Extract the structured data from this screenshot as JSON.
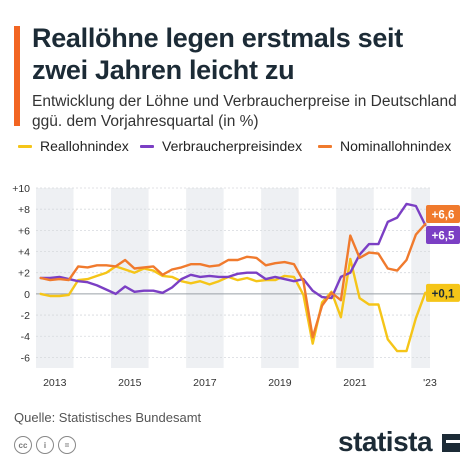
{
  "header": {
    "title": "Reallöhne legen erstmals seit zwei Jahren leicht zu",
    "subtitle": "Entwicklung der Löhne und Verbraucherpreise in Deutschland ggü. dem Vorjahresquartal (in %)"
  },
  "footer": {
    "source": "Quelle: Statistisches Bundesamt",
    "brand": "statista",
    "license_icons": [
      "cc-icon",
      "by-icon",
      "nd-icon"
    ]
  },
  "colors": {
    "accent": "#f26522",
    "real": "#f5c518",
    "cpi": "#7b3fc4",
    "nominal": "#f07a2d"
  },
  "chart_data": {
    "type": "line",
    "title": "Reallöhne legen erstmals seit zwei Jahren leicht zu",
    "subtitle": "Entwicklung der Löhne und Verbraucherpreise in Deutschland ggü. dem Vorjahresquartal (in %)",
    "xlabel": "",
    "ylabel": "",
    "x": [
      "Q1 2013",
      "Q2 2013",
      "Q3 2013",
      "Q4 2013",
      "Q1 2014",
      "Q2 2014",
      "Q3 2014",
      "Q4 2014",
      "Q1 2015",
      "Q2 2015",
      "Q3 2015",
      "Q4 2015",
      "Q1 2016",
      "Q2 2016",
      "Q3 2016",
      "Q4 2016",
      "Q1 2017",
      "Q2 2017",
      "Q3 2017",
      "Q4 2017",
      "Q1 2018",
      "Q2 2018",
      "Q3 2018",
      "Q4 2018",
      "Q1 2019",
      "Q2 2019",
      "Q3 2019",
      "Q4 2019",
      "Q1 2020",
      "Q2 2020",
      "Q3 2020",
      "Q4 2020",
      "Q1 2021",
      "Q2 2021",
      "Q3 2021",
      "Q4 2021",
      "Q1 2022",
      "Q2 2022",
      "Q3 2022",
      "Q4 2022",
      "Q1 2023",
      "Q2 2023"
    ],
    "x_tick_labels": [
      "2013",
      "2015",
      "2017",
      "2019",
      "2021",
      "'23"
    ],
    "ylim": [
      -7,
      10
    ],
    "y_ticks": [
      -6,
      -4,
      -2,
      0,
      2,
      4,
      6,
      8,
      10
    ],
    "y_tick_labels": [
      "-6",
      "-4",
      "-2",
      "0",
      "+2",
      "+4",
      "+6",
      "+8",
      "+10"
    ],
    "grid": true,
    "legend_position": "top",
    "series": [
      {
        "name": "Reallohnindex",
        "color": "#f5c518",
        "values": [
          0.0,
          -0.2,
          -0.2,
          -0.1,
          1.3,
          1.4,
          1.7,
          2.0,
          2.6,
          2.3,
          2.0,
          2.4,
          2.2,
          1.7,
          1.6,
          1.2,
          1.0,
          1.2,
          0.9,
          1.2,
          1.6,
          1.3,
          1.5,
          1.2,
          1.3,
          1.3,
          1.7,
          1.6,
          -0.1,
          -4.7,
          -0.8,
          0.2,
          -2.2,
          3.3,
          -0.4,
          -1.0,
          -1.0,
          -4.3,
          -5.4,
          -5.4,
          -2.3,
          0.1
        ],
        "end_label": "+0,1"
      },
      {
        "name": "Verbraucherpreisindex",
        "color": "#7b3fc4",
        "values": [
          1.5,
          1.5,
          1.6,
          1.4,
          1.2,
          1.1,
          0.8,
          0.4,
          0.0,
          0.7,
          0.2,
          0.3,
          0.3,
          0.1,
          0.6,
          1.4,
          1.8,
          1.6,
          1.7,
          1.6,
          1.6,
          1.9,
          2.0,
          2.0,
          1.4,
          1.6,
          1.4,
          1.2,
          1.4,
          0.3,
          -0.3,
          -0.4,
          1.6,
          2.0,
          3.7,
          4.7,
          4.7,
          6.8,
          7.2,
          8.5,
          8.3,
          6.5
        ],
        "end_label": "+6,5"
      },
      {
        "name": "Nominallohnindex",
        "color": "#f07a2d",
        "values": [
          1.5,
          1.3,
          1.4,
          1.3,
          2.6,
          2.5,
          2.7,
          2.7,
          2.6,
          3.2,
          2.4,
          2.5,
          2.6,
          1.8,
          2.3,
          2.5,
          2.8,
          2.8,
          2.6,
          2.7,
          3.2,
          3.2,
          3.5,
          3.4,
          2.7,
          2.9,
          3.0,
          2.8,
          1.2,
          -4.1,
          -1.1,
          0.1,
          -0.6,
          5.5,
          3.4,
          3.9,
          3.8,
          2.4,
          2.2,
          3.2,
          5.6,
          6.6
        ],
        "end_label": "+6,6"
      }
    ]
  }
}
